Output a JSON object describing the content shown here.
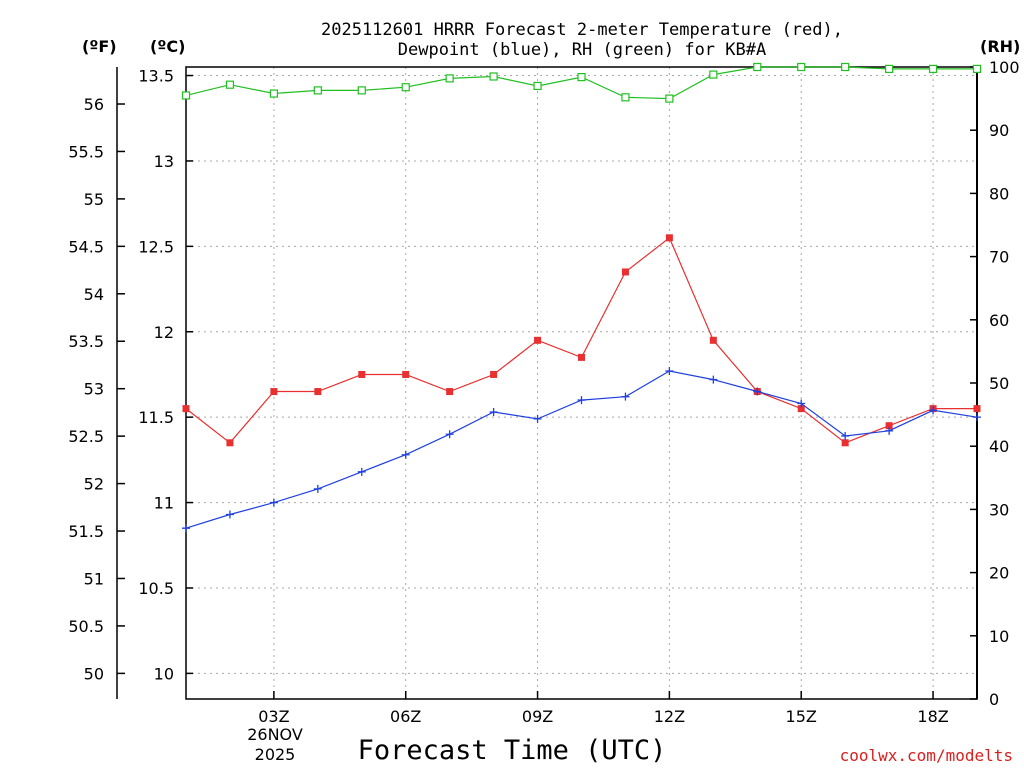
{
  "chart_data": {
    "type": "line",
    "title_line1": "2025112601 HRRR Forecast 2-meter Temperature (red),",
    "title_line2": "Dewpoint (blue), RH (green) for KB#A",
    "xlabel": "Forecast Time (UTC)",
    "credit": "coolwx.com/modelts",
    "unit_left_f": "(ºF)",
    "unit_left_c": "(ºC)",
    "unit_right": "(RH)",
    "date_lines": [
      "26NOV",
      "2025"
    ],
    "x_range": [
      1,
      19
    ],
    "x_ticks": [
      {
        "hour": 3,
        "label": "03Z"
      },
      {
        "hour": 6,
        "label": "06Z"
      },
      {
        "hour": 9,
        "label": "09Z"
      },
      {
        "hour": 12,
        "label": "12Z"
      },
      {
        "hour": 15,
        "label": "15Z"
      },
      {
        "hour": 18,
        "label": "18Z"
      }
    ],
    "celsius_range": [
      9.85,
      13.55
    ],
    "celsius_ticks": [
      "10",
      "10.5",
      "11",
      "11.5",
      "12",
      "12.5",
      "13",
      "13.5"
    ],
    "fahrenheit_ticks": [
      "50",
      "50.5",
      "51",
      "51.5",
      "52",
      "52.5",
      "53",
      "53.5",
      "54",
      "54.5",
      "55",
      "55.5",
      "56"
    ],
    "rh_range": [
      0,
      100
    ],
    "rh_ticks": [
      "0",
      "10",
      "20",
      "30",
      "40",
      "50",
      "60",
      "70",
      "80",
      "90",
      "100"
    ],
    "hours": [
      1,
      2,
      3,
      4,
      5,
      6,
      7,
      8,
      9,
      10,
      11,
      12,
      13,
      14,
      15,
      16,
      17,
      18,
      19
    ],
    "series": [
      {
        "name": "Temperature",
        "axis": "celsius",
        "color": "#e83030",
        "marker": "filled-square",
        "values": [
          11.55,
          11.35,
          11.65,
          11.65,
          11.75,
          11.75,
          11.65,
          11.75,
          11.95,
          11.85,
          12.35,
          12.55,
          11.95,
          11.65,
          11.55,
          11.35,
          11.45,
          11.55,
          11.55
        ]
      },
      {
        "name": "Dewpoint",
        "axis": "celsius",
        "color": "#2040e0",
        "marker": "plus",
        "values": [
          10.85,
          10.93,
          11.0,
          11.08,
          11.18,
          11.28,
          11.4,
          11.53,
          11.49,
          11.6,
          11.62,
          11.77,
          11.72,
          11.65,
          11.58,
          11.39,
          11.42,
          11.54,
          11.5
        ]
      },
      {
        "name": "RH",
        "axis": "rh",
        "color": "#20c020",
        "marker": "open-square",
        "values": [
          95.5,
          97.2,
          95.8,
          96.3,
          96.3,
          96.8,
          98.2,
          98.5,
          97.0,
          98.4,
          95.2,
          95.0,
          98.8,
          100,
          100,
          100,
          99.7,
          99.7,
          99.7
        ]
      }
    ]
  }
}
